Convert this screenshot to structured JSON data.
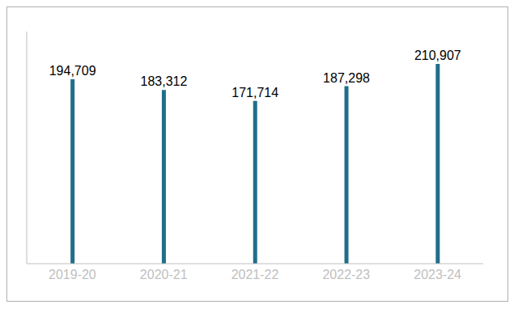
{
  "chart_data": {
    "type": "bar",
    "categories": [
      "2019-20",
      "2020-21",
      "2021-22",
      "2022-23",
      "2023-24"
    ],
    "values": [
      194709,
      183312,
      171714,
      187298,
      210907
    ],
    "value_labels": [
      "194,709",
      "183,312",
      "171,714",
      "187,298",
      "210,907"
    ],
    "data_labels": true,
    "color": "#1f6f8b",
    "ylim": [
      0,
      245000
    ],
    "grid": false,
    "tick_labels": "x"
  }
}
